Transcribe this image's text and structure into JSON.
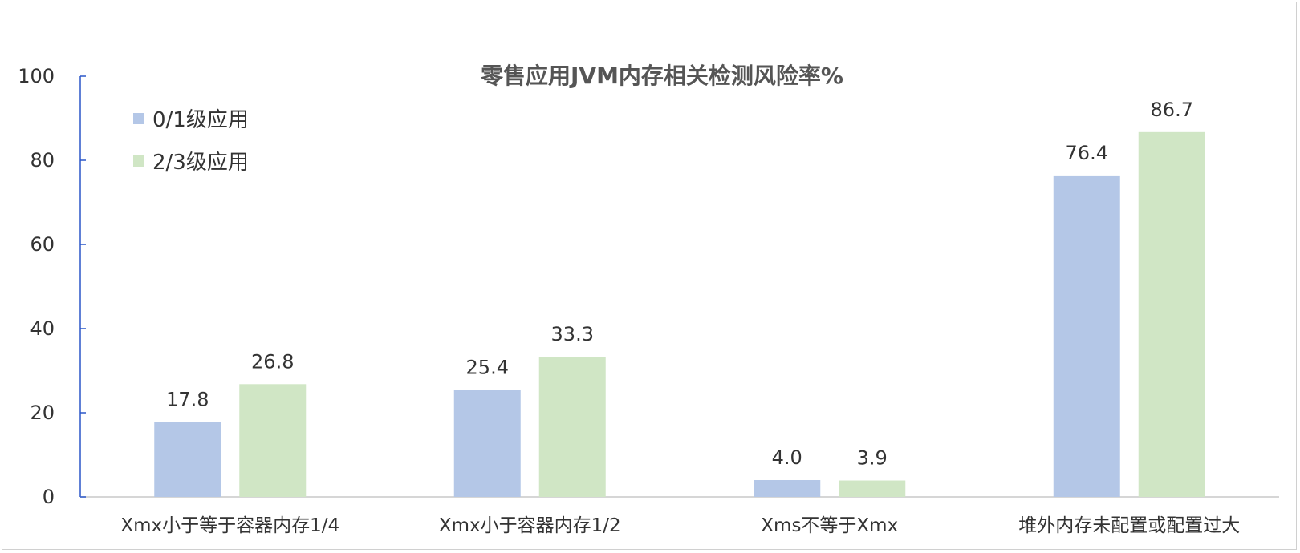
{
  "chart_data": {
    "type": "bar",
    "title": "零售应用JVM内存相关检测风险率%",
    "xlabel": "",
    "ylabel": "",
    "ylim": [
      0,
      100
    ],
    "yticks": [
      0,
      20,
      40,
      60,
      80,
      100
    ],
    "grid": false,
    "legend_position": "top-left",
    "categories": [
      "Xmx小于等于容器内存1/4",
      "Xmx小于容器内存1/2",
      "Xms不等于Xmx",
      "堆外内存未配置或配置过大"
    ],
    "series": [
      {
        "name": "0/1级应用",
        "color": "#b4c7e7",
        "values": [
          17.8,
          25.4,
          4.0,
          76.4
        ]
      },
      {
        "name": "2/3级应用",
        "color": "#d0e6c5",
        "values": [
          26.8,
          33.3,
          3.9,
          86.7
        ]
      }
    ],
    "data_labels": [
      [
        "17.8",
        "25.4",
        "4.0",
        "76.4"
      ],
      [
        "26.8",
        "33.3",
        "3.9",
        "86.7"
      ]
    ],
    "axis_color": "#2b57c8"
  }
}
